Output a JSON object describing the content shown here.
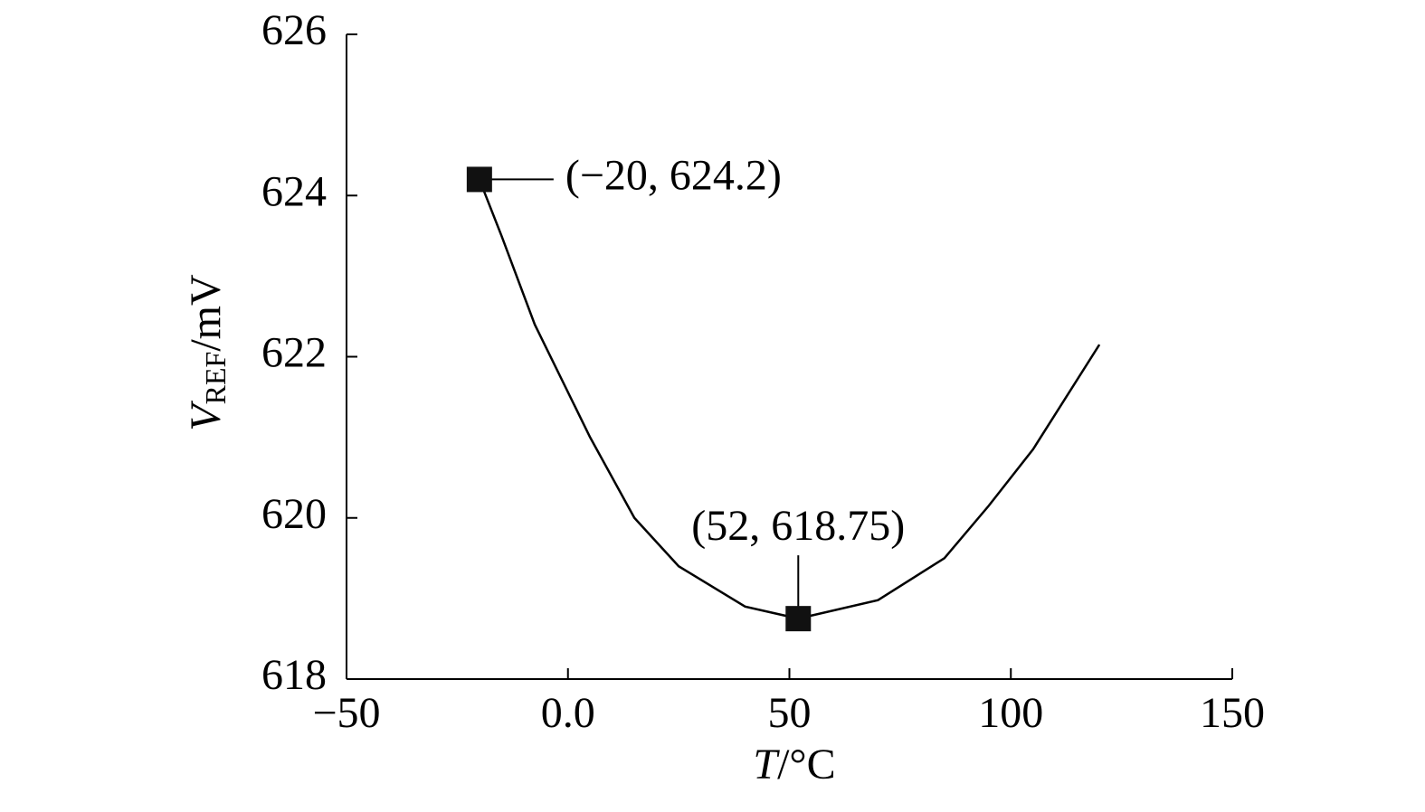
{
  "chart_data": {
    "type": "line",
    "xlabel": [
      "T",
      "/°C"
    ],
    "ylabel": [
      "V",
      "REF",
      "/mV"
    ],
    "x": [
      -20,
      -15,
      -7.5,
      5,
      15,
      25,
      40,
      52,
      70,
      85,
      95,
      105,
      120
    ],
    "series": [
      {
        "color": "#000000",
        "values": [
          624.2,
          623.5,
          622.4,
          621.0,
          620.0,
          619.4,
          618.9,
          618.75,
          618.98,
          619.5,
          620.15,
          620.85,
          622.15
        ]
      }
    ],
    "annotations": [
      {
        "text": "(−20, 624.2)",
        "x": -20,
        "y": 624.2
      },
      {
        "text": "(52, 618.75)",
        "x": 52,
        "y": 618.75
      }
    ],
    "xlim": [
      -50,
      150
    ],
    "xticks": [
      {
        "value": -50,
        "label": "−50"
      },
      {
        "value": 0,
        "label": "0.0"
      },
      50,
      100,
      150
    ],
    "ylim": [
      618,
      626
    ],
    "yticks": [
      618,
      620,
      622,
      624,
      626
    ],
    "grid": false
  }
}
